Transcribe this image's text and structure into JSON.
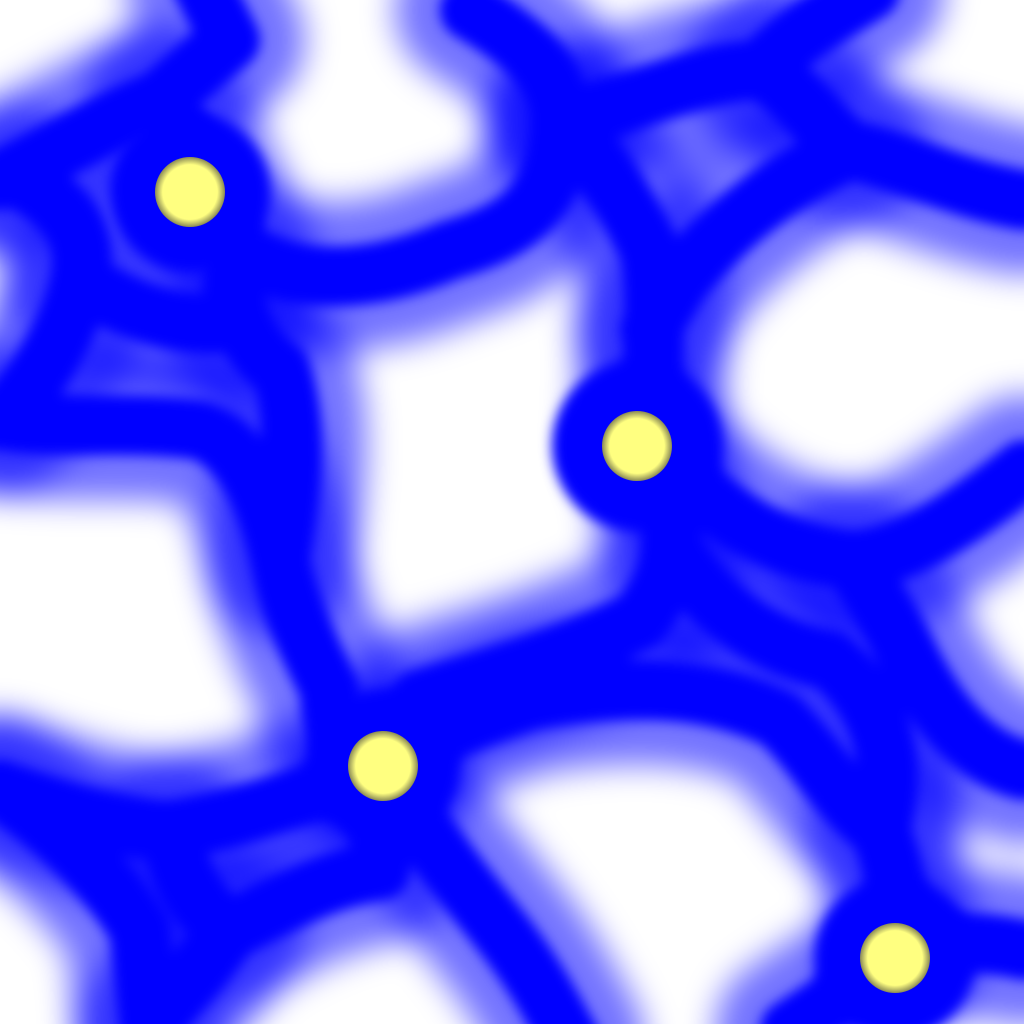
{
  "colors": {
    "background": "#ffffff",
    "network": "#0000ff",
    "nucleus_fill": "#ffff80",
    "nucleus_edge": "#8a8a55"
  },
  "nucleus_count": 4
}
